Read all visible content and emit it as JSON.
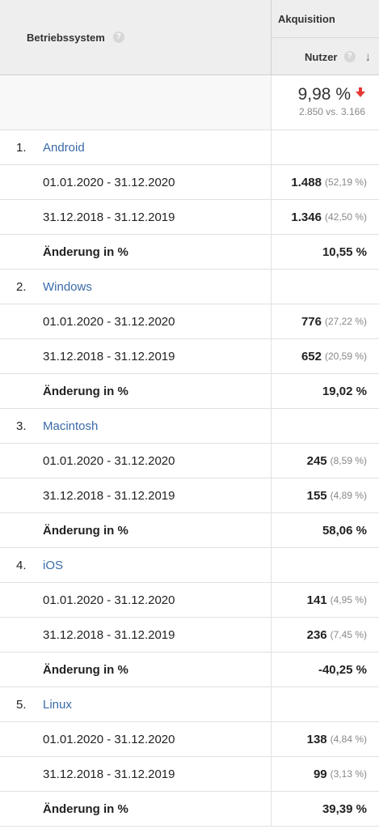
{
  "header": {
    "dimension_label": "Betriebssystem",
    "section_label": "Akquisition",
    "metric_label": "Nutzer",
    "help_glyph": "?"
  },
  "summary": {
    "change": "9,98 %",
    "comparison": "2.850 vs. 3.166",
    "trend_color": "#e53935"
  },
  "groups": [
    {
      "num": "1.",
      "name": "Android",
      "rows": [
        {
          "label": "01.01.2020 - 31.12.2020",
          "value": "1.488",
          "share": "(52,19 %)"
        },
        {
          "label": "31.12.2018 - 31.12.2019",
          "value": "1.346",
          "share": "(42,50 %)"
        },
        {
          "label": "Änderung in %",
          "value": "10,55 %",
          "share": ""
        }
      ]
    },
    {
      "num": "2.",
      "name": "Windows",
      "rows": [
        {
          "label": "01.01.2020 - 31.12.2020",
          "value": "776",
          "share": "(27,22 %)"
        },
        {
          "label": "31.12.2018 - 31.12.2019",
          "value": "652",
          "share": "(20,59 %)"
        },
        {
          "label": "Änderung in %",
          "value": "19,02 %",
          "share": ""
        }
      ]
    },
    {
      "num": "3.",
      "name": "Macintosh",
      "rows": [
        {
          "label": "01.01.2020 - 31.12.2020",
          "value": "245",
          "share": "(8,59 %)"
        },
        {
          "label": "31.12.2018 - 31.12.2019",
          "value": "155",
          "share": "(4,89 %)"
        },
        {
          "label": "Änderung in %",
          "value": "58,06 %",
          "share": ""
        }
      ]
    },
    {
      "num": "4.",
      "name": "iOS",
      "rows": [
        {
          "label": "01.01.2020 - 31.12.2020",
          "value": "141",
          "share": "(4,95 %)"
        },
        {
          "label": "31.12.2018 - 31.12.2019",
          "value": "236",
          "share": "(7,45 %)"
        },
        {
          "label": "Änderung in %",
          "value": "-40,25 %",
          "share": ""
        }
      ]
    },
    {
      "num": "5.",
      "name": "Linux",
      "rows": [
        {
          "label": "01.01.2020 - 31.12.2020",
          "value": "138",
          "share": "(4,84 %)"
        },
        {
          "label": "31.12.2018 - 31.12.2019",
          "value": "99",
          "share": "(3,13 %)"
        },
        {
          "label": "Änderung in %",
          "value": "39,39 %",
          "share": ""
        }
      ]
    }
  ]
}
